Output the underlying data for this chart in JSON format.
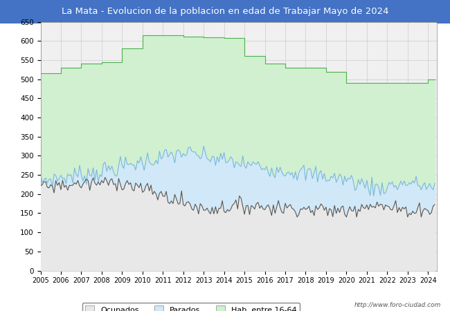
{
  "title": "La Mata - Evolucion de la poblacion en edad de Trabajar Mayo de 2024",
  "title_bg": "#4472C4",
  "title_color": "white",
  "ylim": [
    0,
    650
  ],
  "yticks": [
    0,
    50,
    100,
    150,
    200,
    250,
    300,
    350,
    400,
    450,
    500,
    550,
    600,
    650
  ],
  "url_text": "http://www.foro-ciudad.com",
  "legend_labels": [
    "Ocupados",
    "Parados",
    "Hab. entre 16-64"
  ],
  "color_ocupados_fill": "#e8e8e8",
  "color_ocupados_line": "#555555",
  "color_parados_fill": "#d0e8f8",
  "color_parados_line": "#7ab8d8",
  "color_hab_fill": "#d0f0d0",
  "color_hab_line": "#50b050",
  "hab_annual": [
    515,
    530,
    540,
    545,
    580,
    615,
    615,
    612,
    610,
    608,
    560,
    540,
    530,
    530,
    520,
    490,
    490,
    490,
    490,
    500
  ],
  "hab_years": [
    2005,
    2006,
    2007,
    2008,
    2009,
    2010,
    2011,
    2012,
    2013,
    2014,
    2015,
    2016,
    2017,
    2018,
    2019,
    2020,
    2021,
    2022,
    2023,
    2024
  ]
}
